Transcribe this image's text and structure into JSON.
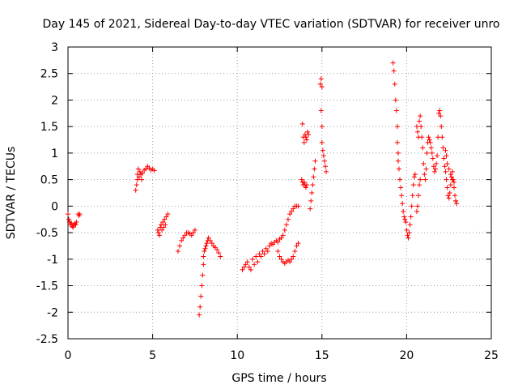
{
  "chart_data": {
    "type": "scatter",
    "title": "Day 145 of 2021, Sidereal Day-to-day VTEC variation (SDTVAR) for receiver unro",
    "xlabel": "GPS time / hours",
    "ylabel": "SDTVAR / TECUs",
    "xlim": [
      0,
      25
    ],
    "ylim": [
      -2.5,
      3
    ],
    "xticks": [
      0,
      5,
      10,
      15,
      20,
      25
    ],
    "yticks": [
      -2.5,
      -2,
      -1.5,
      -1,
      -0.5,
      0,
      0.5,
      1,
      1.5,
      2,
      2.5,
      3
    ],
    "xtick_labels": [
      "0",
      "5",
      "10",
      "15",
      "20",
      "25"
    ],
    "ytick_labels": [
      "-2.5",
      "-2",
      "-1.5",
      "-1",
      "-0.5",
      "0",
      "0.5",
      "1",
      "1.5",
      "2",
      "2.5",
      "3"
    ],
    "grid": true,
    "marker": "+",
    "series": [
      {
        "name": "SDTVAR",
        "color": "#ff0000",
        "points": [
          [
            0.0,
            -0.15
          ],
          [
            0.05,
            -0.25
          ],
          [
            0.1,
            -0.3
          ],
          [
            0.15,
            -0.35
          ],
          [
            0.2,
            -0.32
          ],
          [
            0.25,
            -0.38
          ],
          [
            0.3,
            -0.4
          ],
          [
            0.35,
            -0.36
          ],
          [
            0.4,
            -0.33
          ],
          [
            0.45,
            -0.35
          ],
          [
            0.5,
            -0.3
          ],
          [
            0.6,
            -0.15
          ],
          [
            0.65,
            -0.18
          ],
          [
            0.7,
            -0.15
          ],
          [
            4.0,
            0.3
          ],
          [
            4.05,
            0.4
          ],
          [
            4.1,
            0.5
          ],
          [
            4.1,
            0.6
          ],
          [
            4.15,
            0.7
          ],
          [
            4.2,
            0.55
          ],
          [
            4.25,
            0.65
          ],
          [
            4.3,
            0.6
          ],
          [
            4.35,
            0.5
          ],
          [
            4.4,
            0.62
          ],
          [
            4.5,
            0.68
          ],
          [
            4.6,
            0.7
          ],
          [
            4.7,
            0.75
          ],
          [
            4.8,
            0.72
          ],
          [
            4.9,
            0.68
          ],
          [
            5.0,
            0.7
          ],
          [
            5.1,
            0.67
          ],
          [
            5.3,
            -0.45
          ],
          [
            5.35,
            -0.5
          ],
          [
            5.4,
            -0.55
          ],
          [
            5.45,
            -0.4
          ],
          [
            5.5,
            -0.35
          ],
          [
            5.55,
            -0.45
          ],
          [
            5.6,
            -0.3
          ],
          [
            5.65,
            -0.4
          ],
          [
            5.7,
            -0.25
          ],
          [
            5.75,
            -0.35
          ],
          [
            5.8,
            -0.2
          ],
          [
            5.9,
            -0.15
          ],
          [
            6.5,
            -0.85
          ],
          [
            6.6,
            -0.75
          ],
          [
            6.7,
            -0.65
          ],
          [
            6.8,
            -0.6
          ],
          [
            6.9,
            -0.55
          ],
          [
            7.0,
            -0.5
          ],
          [
            7.1,
            -0.5
          ],
          [
            7.2,
            -0.52
          ],
          [
            7.3,
            -0.55
          ],
          [
            7.4,
            -0.5
          ],
          [
            7.5,
            -0.45
          ],
          [
            7.75,
            -2.05
          ],
          [
            7.8,
            -1.9
          ],
          [
            7.85,
            -1.7
          ],
          [
            7.9,
            -1.5
          ],
          [
            7.95,
            -1.3
          ],
          [
            8.0,
            -1.1
          ],
          [
            8.0,
            -0.95
          ],
          [
            8.05,
            -0.85
          ],
          [
            8.1,
            -0.8
          ],
          [
            8.15,
            -0.75
          ],
          [
            8.2,
            -0.7
          ],
          [
            8.25,
            -0.65
          ],
          [
            8.3,
            -0.6
          ],
          [
            8.4,
            -0.65
          ],
          [
            8.5,
            -0.7
          ],
          [
            8.6,
            -0.75
          ],
          [
            8.7,
            -0.78
          ],
          [
            8.8,
            -0.82
          ],
          [
            8.9,
            -0.88
          ],
          [
            9.0,
            -0.95
          ],
          [
            10.3,
            -1.2
          ],
          [
            10.4,
            -1.15
          ],
          [
            10.5,
            -1.1
          ],
          [
            10.6,
            -1.05
          ],
          [
            10.7,
            -1.15
          ],
          [
            10.8,
            -1.2
          ],
          [
            10.9,
            -1.0
          ],
          [
            11.0,
            -1.1
          ],
          [
            11.1,
            -0.95
          ],
          [
            11.2,
            -1.05
          ],
          [
            11.3,
            -0.9
          ],
          [
            11.4,
            -0.95
          ],
          [
            11.5,
            -0.85
          ],
          [
            11.6,
            -0.9
          ],
          [
            11.7,
            -0.8
          ],
          [
            11.8,
            -0.85
          ],
          [
            11.9,
            -0.75
          ],
          [
            12.0,
            -0.7
          ],
          [
            12.1,
            -0.72
          ],
          [
            12.2,
            -0.68
          ],
          [
            12.3,
            -0.65
          ],
          [
            12.4,
            -0.68
          ],
          [
            12.5,
            -0.62
          ],
          [
            12.6,
            -0.6
          ],
          [
            12.7,
            -0.55
          ],
          [
            12.8,
            -0.45
          ],
          [
            12.9,
            -0.35
          ],
          [
            13.0,
            -0.25
          ],
          [
            13.1,
            -0.15
          ],
          [
            13.2,
            -0.1
          ],
          [
            13.3,
            -0.05
          ],
          [
            13.4,
            0.0
          ],
          [
            13.5,
            0.0
          ],
          [
            13.6,
            0.0
          ],
          [
            12.4,
            -0.85
          ],
          [
            12.5,
            -0.95
          ],
          [
            12.6,
            -1.0
          ],
          [
            12.7,
            -1.05
          ],
          [
            12.8,
            -1.08
          ],
          [
            12.9,
            -1.05
          ],
          [
            13.0,
            -1.02
          ],
          [
            13.1,
            -1.05
          ],
          [
            13.2,
            -1.0
          ],
          [
            13.3,
            -0.95
          ],
          [
            13.4,
            -0.85
          ],
          [
            13.5,
            -0.75
          ],
          [
            13.6,
            -0.7
          ],
          [
            13.8,
            0.5
          ],
          [
            13.85,
            0.45
          ],
          [
            13.9,
            0.4
          ],
          [
            13.95,
            0.45
          ],
          [
            14.0,
            0.4
          ],
          [
            14.05,
            0.35
          ],
          [
            14.1,
            0.4
          ],
          [
            13.85,
            1.55
          ],
          [
            13.9,
            1.3
          ],
          [
            13.95,
            1.2
          ],
          [
            14.0,
            1.35
          ],
          [
            14.05,
            1.3
          ],
          [
            14.1,
            1.25
          ],
          [
            14.15,
            1.4
          ],
          [
            14.2,
            1.35
          ],
          [
            14.3,
            -0.05
          ],
          [
            14.35,
            0.1
          ],
          [
            14.4,
            0.25
          ],
          [
            14.45,
            0.4
          ],
          [
            14.5,
            0.55
          ],
          [
            14.55,
            0.7
          ],
          [
            14.6,
            0.85
          ],
          [
            14.9,
            2.3
          ],
          [
            14.95,
            2.4
          ],
          [
            15.0,
            2.25
          ],
          [
            14.95,
            1.8
          ],
          [
            15.0,
            1.5
          ],
          [
            15.0,
            1.2
          ],
          [
            15.05,
            1.05
          ],
          [
            15.1,
            0.95
          ],
          [
            15.15,
            0.85
          ],
          [
            15.2,
            0.75
          ],
          [
            15.25,
            0.65
          ],
          [
            19.2,
            2.7
          ],
          [
            19.25,
            2.55
          ],
          [
            19.3,
            2.3
          ],
          [
            19.35,
            2.0
          ],
          [
            19.4,
            1.8
          ],
          [
            19.45,
            1.5
          ],
          [
            19.45,
            1.2
          ],
          [
            19.5,
            1.0
          ],
          [
            19.5,
            0.85
          ],
          [
            19.55,
            0.7
          ],
          [
            19.6,
            0.5
          ],
          [
            19.65,
            0.35
          ],
          [
            19.7,
            0.2
          ],
          [
            19.75,
            0.05
          ],
          [
            19.8,
            -0.1
          ],
          [
            19.85,
            -0.2
          ],
          [
            19.9,
            -0.25
          ],
          [
            19.95,
            -0.3
          ],
          [
            20.0,
            -0.45
          ],
          [
            20.05,
            -0.55
          ],
          [
            20.1,
            -0.6
          ],
          [
            20.15,
            -0.5
          ],
          [
            20.2,
            -0.35
          ],
          [
            20.25,
            -0.2
          ],
          [
            20.3,
            0.0
          ],
          [
            20.35,
            0.2
          ],
          [
            20.4,
            0.4
          ],
          [
            20.45,
            0.55
          ],
          [
            20.5,
            0.6
          ],
          [
            20.6,
            -0.1
          ],
          [
            20.65,
            0.0
          ],
          [
            20.7,
            0.2
          ],
          [
            20.75,
            0.4
          ],
          [
            20.8,
            0.5
          ],
          [
            20.6,
            1.5
          ],
          [
            20.65,
            1.4
          ],
          [
            20.7,
            1.3
          ],
          [
            20.75,
            1.6
          ],
          [
            20.8,
            1.7
          ],
          [
            20.85,
            1.5
          ],
          [
            20.9,
            1.3
          ],
          [
            20.95,
            1.1
          ],
          [
            21.0,
            0.8
          ],
          [
            21.05,
            0.6
          ],
          [
            21.1,
            0.5
          ],
          [
            21.15,
            0.7
          ],
          [
            21.2,
            1.0
          ],
          [
            21.25,
            1.2
          ],
          [
            21.3,
            1.3
          ],
          [
            21.35,
            1.25
          ],
          [
            21.4,
            1.2
          ],
          [
            21.45,
            1.1
          ],
          [
            21.5,
            1.0
          ],
          [
            21.55,
            0.9
          ],
          [
            21.6,
            0.75
          ],
          [
            21.65,
            0.65
          ],
          [
            21.7,
            0.7
          ],
          [
            21.75,
            0.8
          ],
          [
            21.8,
            0.95
          ],
          [
            21.85,
            1.3
          ],
          [
            21.9,
            1.75
          ],
          [
            21.95,
            1.8
          ],
          [
            22.0,
            1.7
          ],
          [
            22.05,
            1.5
          ],
          [
            22.1,
            1.3
          ],
          [
            22.15,
            1.1
          ],
          [
            22.2,
            0.9
          ],
          [
            22.25,
            0.75
          ],
          [
            22.3,
            0.65
          ],
          [
            22.35,
            0.5
          ],
          [
            22.4,
            0.35
          ],
          [
            22.45,
            0.2
          ],
          [
            22.5,
            0.15
          ],
          [
            22.55,
            0.25
          ],
          [
            22.6,
            0.4
          ],
          [
            22.65,
            0.55
          ],
          [
            22.7,
            0.65
          ],
          [
            22.75,
            0.5
          ],
          [
            22.8,
            0.35
          ],
          [
            22.85,
            0.2
          ],
          [
            22.9,
            0.1
          ],
          [
            22.3,
            1.05
          ],
          [
            22.35,
            0.95
          ],
          [
            22.4,
            0.8
          ],
          [
            22.5,
            0.7
          ],
          [
            22.6,
            0.6
          ],
          [
            22.7,
            0.5
          ],
          [
            22.8,
            0.45
          ],
          [
            22.9,
            0.1
          ],
          [
            22.95,
            0.05
          ]
        ]
      }
    ]
  }
}
